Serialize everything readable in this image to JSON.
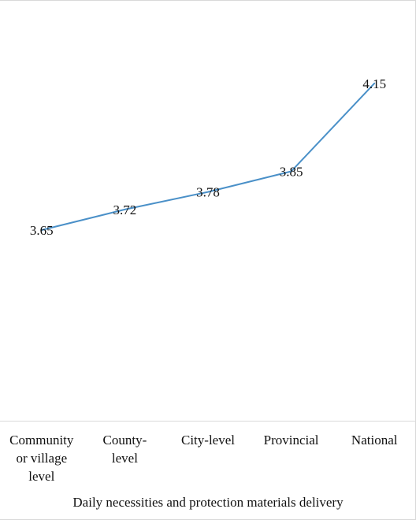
{
  "chart_data": {
    "type": "line",
    "categories": [
      [
        "Community",
        "or village",
        "level"
      ],
      [
        "County-",
        "level"
      ],
      [
        "City-level"
      ],
      [
        "Provincial"
      ],
      [
        "National"
      ]
    ],
    "values": [
      3.65,
      3.72,
      3.78,
      3.85,
      4.15
    ],
    "data_labels": [
      "3.65",
      "3.72",
      "3.78",
      "3.85",
      "4.15"
    ],
    "xlabel": "Daily necessities and protection materials delivery",
    "ylim": [
      3.0,
      4.3
    ],
    "grid": false,
    "line_color": "#4a90c8"
  }
}
